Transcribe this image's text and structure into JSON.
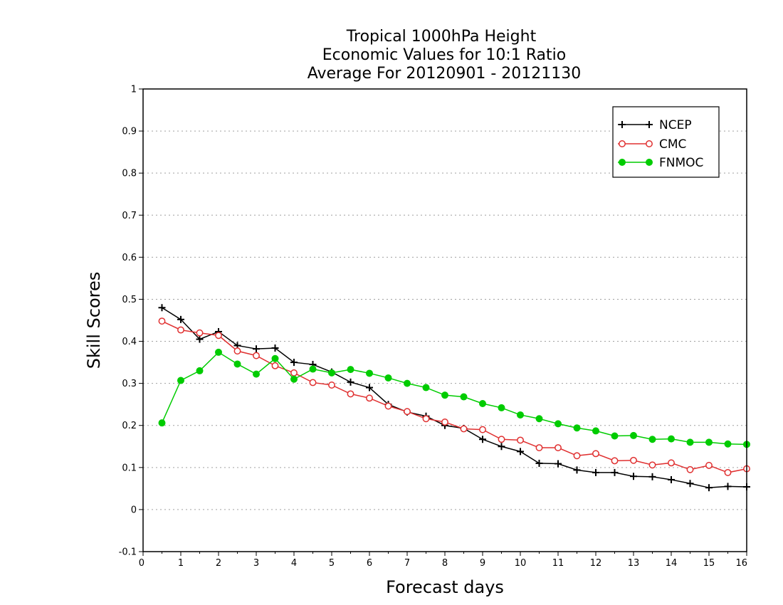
{
  "chart_data": {
    "type": "line",
    "title_lines": [
      "Tropical 1000hPa Height",
      "Economic Values for 10:1 Ratio",
      "Average For 20120901 - 20121130"
    ],
    "xlabel": "Forecast days",
    "ylabel": "Skill Scores",
    "xlim": [
      0,
      16
    ],
    "ylim": [
      -0.1,
      1
    ],
    "xticks": [
      0,
      1,
      2,
      3,
      4,
      5,
      6,
      7,
      8,
      9,
      10,
      11,
      12,
      13,
      14,
      15,
      16
    ],
    "xtick_labels": [
      "0",
      "1",
      "2",
      "3",
      "4",
      "5",
      "6",
      "7",
      "8",
      "9",
      "10",
      "11",
      "12",
      "13",
      "14",
      "15",
      "16"
    ],
    "yticks": [
      -0.1,
      0,
      0.1,
      0.2,
      0.3,
      0.4,
      0.5,
      0.6,
      0.7,
      0.8,
      0.9,
      1
    ],
    "ytick_labels": [
      "-0.1",
      "0",
      "0.1",
      "0.2",
      "0.3",
      "0.4",
      "0.5",
      "0.6",
      "0.7",
      "0.8",
      "0.9",
      "1"
    ],
    "grid": "horizontal dotted",
    "legend_position": "top-right",
    "x": [
      0.5,
      1,
      1.5,
      2,
      2.5,
      3,
      3.5,
      4,
      4.5,
      5,
      5.5,
      6,
      6.5,
      7,
      7.5,
      8,
      8.5,
      9,
      9.5,
      10,
      10.5,
      11,
      11.5,
      12,
      12.5,
      13,
      13.5,
      14,
      14.5,
      15,
      15.5,
      16
    ],
    "series": [
      {
        "name": "NCEP",
        "color": "#000000",
        "marker": "plus",
        "values": [
          0.48,
          0.452,
          0.405,
          0.423,
          0.39,
          0.382,
          0.384,
          0.35,
          0.345,
          0.327,
          0.303,
          0.29,
          0.25,
          0.232,
          0.222,
          0.2,
          0.193,
          0.167,
          0.15,
          0.138,
          0.11,
          0.109,
          0.094,
          0.088,
          0.088,
          0.079,
          0.078,
          0.071,
          0.062,
          0.052,
          0.055,
          0.054
        ]
      },
      {
        "name": "CMC",
        "color": "#e03030",
        "marker": "open-circle",
        "values": [
          0.448,
          0.427,
          0.42,
          0.414,
          0.377,
          0.366,
          0.342,
          0.325,
          0.302,
          0.296,
          0.275,
          0.265,
          0.246,
          0.233,
          0.216,
          0.208,
          0.192,
          0.19,
          0.167,
          0.165,
          0.147,
          0.147,
          0.128,
          0.133,
          0.116,
          0.117,
          0.106,
          0.111,
          0.095,
          0.105,
          0.088,
          0.097
        ]
      },
      {
        "name": "FNMOC",
        "color": "#00cc00",
        "marker": "filled-circle",
        "values": [
          0.206,
          0.307,
          0.33,
          0.374,
          0.346,
          0.322,
          0.359,
          0.31,
          0.334,
          0.325,
          0.333,
          0.324,
          0.313,
          0.3,
          0.29,
          0.272,
          0.268,
          0.252,
          0.242,
          0.225,
          0.216,
          0.204,
          0.194,
          0.187,
          0.175,
          0.176,
          0.167,
          0.168,
          0.16,
          0.16,
          0.156,
          0.155
        ]
      }
    ]
  }
}
